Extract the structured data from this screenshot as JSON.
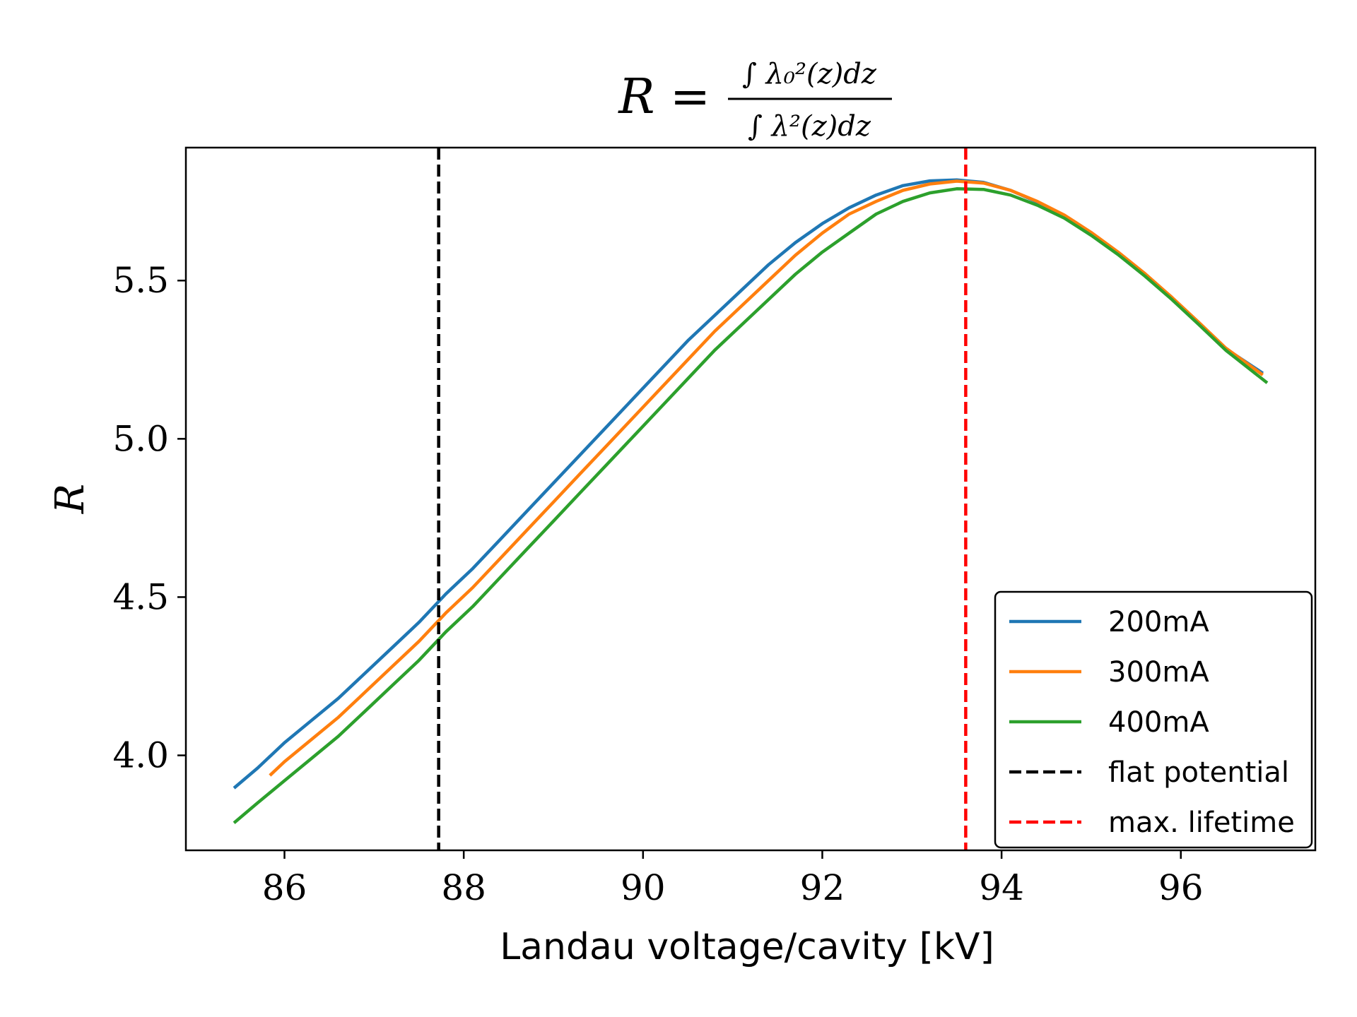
{
  "chart_data": {
    "type": "line",
    "title": "R = ∫ λ₀²(z)dz / ∫ λ²(z)dz",
    "title_parts": {
      "lhs": "R =",
      "numerator": "∫ λ₀²(z)dz",
      "denominator": "∫ λ²(z)dz"
    },
    "xlabel": "Landau voltage/cavity [kV]",
    "ylabel": "R",
    "xlim": [
      84.9,
      97.5
    ],
    "ylim": [
      3.7,
      5.92
    ],
    "x_ticks": [
      86,
      88,
      90,
      92,
      94,
      96
    ],
    "x_tick_labels": [
      "86",
      "88",
      "90",
      "92",
      "94",
      "96"
    ],
    "y_ticks": [
      4.0,
      4.5,
      5.0,
      5.5
    ],
    "y_tick_labels": [
      "4.0",
      "4.5",
      "5.0",
      "5.5"
    ],
    "grid": false,
    "legend_position": "lower-right",
    "series": [
      {
        "name": "200mA",
        "color": "#1f77b4",
        "style": "solid",
        "x": [
          85.45,
          85.7,
          86.0,
          86.3,
          86.6,
          86.9,
          87.2,
          87.5,
          87.8,
          88.1,
          88.4,
          88.7,
          89.0,
          89.3,
          89.6,
          89.9,
          90.2,
          90.5,
          90.8,
          91.1,
          91.4,
          91.7,
          92.0,
          92.3,
          92.6,
          92.9,
          93.2,
          93.5,
          93.8,
          94.1,
          94.4,
          94.7,
          95.0,
          95.3,
          95.6,
          95.9,
          96.2,
          96.5,
          96.9
        ],
        "y": [
          3.9,
          3.96,
          4.04,
          4.11,
          4.18,
          4.26,
          4.34,
          4.42,
          4.51,
          4.59,
          4.68,
          4.77,
          4.86,
          4.95,
          5.04,
          5.13,
          5.22,
          5.31,
          5.39,
          5.47,
          5.55,
          5.62,
          5.68,
          5.73,
          5.77,
          5.8,
          5.815,
          5.818,
          5.81,
          5.785,
          5.748,
          5.705,
          5.65,
          5.588,
          5.52,
          5.445,
          5.366,
          5.285,
          5.21
        ]
      },
      {
        "name": "300mA",
        "color": "#ff7f0e",
        "style": "solid",
        "x": [
          85.85,
          86.0,
          86.3,
          86.6,
          86.9,
          87.2,
          87.5,
          87.8,
          88.1,
          88.4,
          88.7,
          89.0,
          89.3,
          89.6,
          89.9,
          90.2,
          90.5,
          90.8,
          91.1,
          91.4,
          91.7,
          92.0,
          92.3,
          92.6,
          92.9,
          93.2,
          93.5,
          93.8,
          94.1,
          94.4,
          94.7,
          95.0,
          95.3,
          95.6,
          95.9,
          96.2,
          96.5,
          96.9
        ],
        "y": [
          3.94,
          3.98,
          4.05,
          4.12,
          4.2,
          4.28,
          4.36,
          4.45,
          4.53,
          4.62,
          4.71,
          4.8,
          4.89,
          4.98,
          5.07,
          5.16,
          5.25,
          5.34,
          5.42,
          5.5,
          5.58,
          5.65,
          5.71,
          5.75,
          5.785,
          5.805,
          5.814,
          5.808,
          5.785,
          5.75,
          5.707,
          5.652,
          5.59,
          5.522,
          5.447,
          5.368,
          5.287,
          5.205
        ]
      },
      {
        "name": "400mA",
        "color": "#2ca02c",
        "style": "solid",
        "x": [
          85.45,
          85.7,
          86.0,
          86.3,
          86.6,
          86.9,
          87.2,
          87.5,
          87.8,
          88.1,
          88.4,
          88.7,
          89.0,
          89.3,
          89.6,
          89.9,
          90.2,
          90.5,
          90.8,
          91.1,
          91.4,
          91.7,
          92.0,
          92.3,
          92.6,
          92.9,
          93.2,
          93.5,
          93.8,
          94.1,
          94.4,
          94.7,
          95.0,
          95.3,
          95.6,
          95.9,
          96.2,
          96.5,
          96.95
        ],
        "y": [
          3.79,
          3.85,
          3.92,
          3.99,
          4.06,
          4.14,
          4.22,
          4.3,
          4.39,
          4.47,
          4.56,
          4.65,
          4.74,
          4.83,
          4.92,
          5.01,
          5.1,
          5.19,
          5.28,
          5.36,
          5.44,
          5.52,
          5.59,
          5.65,
          5.71,
          5.75,
          5.777,
          5.79,
          5.788,
          5.77,
          5.738,
          5.697,
          5.643,
          5.582,
          5.514,
          5.44,
          5.361,
          5.28,
          5.18
        ]
      },
      {
        "name": "flat potential",
        "color": "#000000",
        "style": "dashed",
        "vline_x": 87.72
      },
      {
        "name": "max. lifetime",
        "color": "#ff0000",
        "style": "dashed",
        "vline_x": 93.6
      }
    ]
  }
}
